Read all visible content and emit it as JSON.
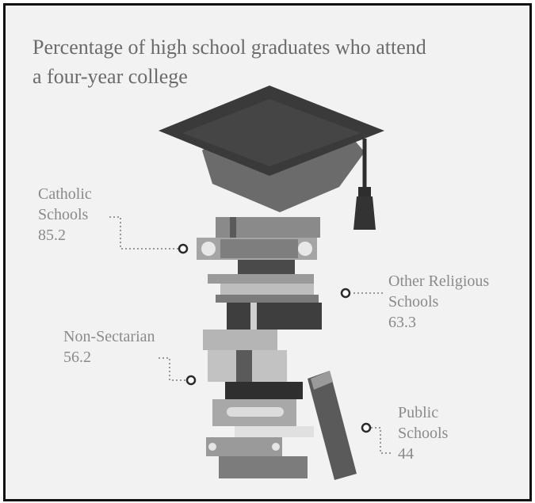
{
  "title_line1": "Percentage of high school graduates who attend",
  "title_line2": "a four-year college",
  "chart_data": {
    "type": "table",
    "title": "Percentage of high school graduates who attend a four-year college",
    "categories": [
      "Catholic Schools",
      "Other Religious Schools",
      "Non-Sectarian",
      "Public Schools"
    ],
    "values": [
      85.2,
      63.3,
      56.2,
      44
    ],
    "labels": [
      {
        "lines": [
          "Catholic",
          "Schools"
        ],
        "value": "85.2"
      },
      {
        "lines": [
          "Other Religious",
          "Schools"
        ],
        "value": "63.3"
      },
      {
        "lines": [
          "Non-Sectarian"
        ],
        "value": "56.2"
      },
      {
        "lines": [
          "Public",
          "Schools"
        ],
        "value": "44"
      }
    ]
  },
  "colors": {
    "background": "#f2f2f2",
    "text": "#8a8a8a",
    "cap": "#3a3a3a",
    "books_dark": "#4a4a4a",
    "books_mid": "#8c8c8c",
    "books_light": "#c4c4c4"
  }
}
